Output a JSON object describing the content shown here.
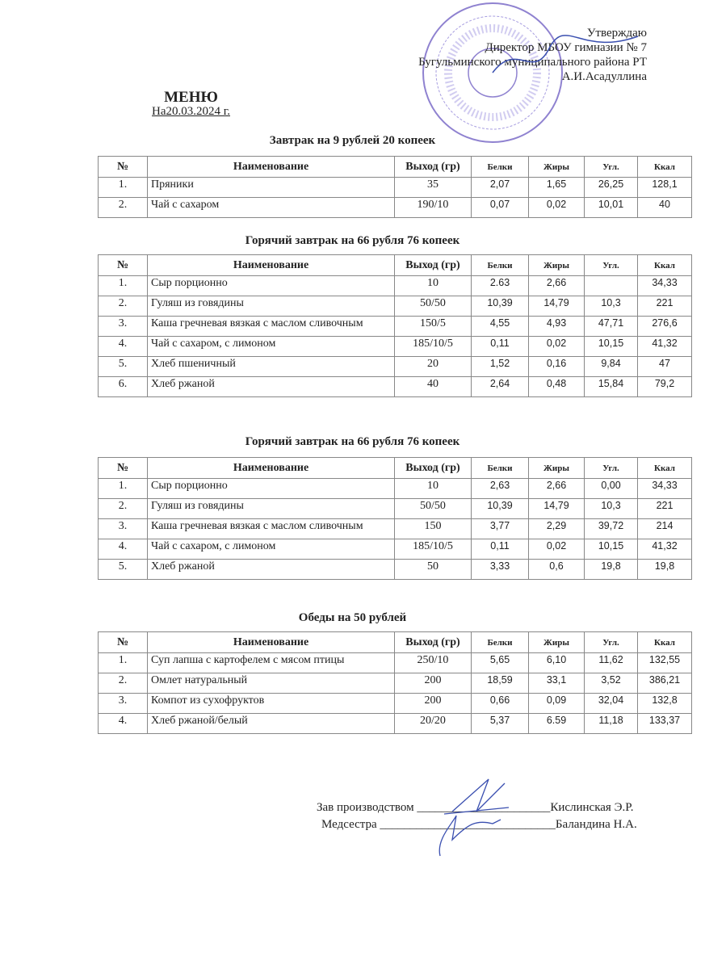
{
  "approval": {
    "line1": "Утверждаю",
    "line2": "Директор МБОУ гимназии № 7",
    "line3": "Бугульминского муниципального района РТ",
    "line4": "А.И.Асадуллина"
  },
  "title": "МЕНЮ",
  "date": "На20.03.2024 г.",
  "headers": {
    "num": "№",
    "name": "Наименование",
    "out": "Выход (гр)",
    "prot": "Белки",
    "fat": "Жиры",
    "carb": "Угл.",
    "kcal": "Ккал"
  },
  "sections": [
    {
      "title": "Завтрак на 9 рублей 20 копеек",
      "rows": [
        [
          "1.",
          "Пряники",
          "35",
          "2,07",
          "1,65",
          "26,25",
          "128,1"
        ],
        [
          "2.",
          "Чай с сахаром",
          "190/10",
          "0,07",
          "0,02",
          "10,01",
          "40"
        ]
      ]
    },
    {
      "title": "Горячий завтрак на 66 рубля 76 копеек",
      "rows": [
        [
          "1.",
          "Сыр порционно",
          "10",
          "2.63",
          "2,66",
          "",
          "34,33"
        ],
        [
          "2.",
          "Гуляш из говядины",
          "50/50",
          "10,39",
          "14,79",
          "10,3",
          "221"
        ],
        [
          "3.",
          "Каша гречневая вязкая с маслом сливочным",
          "150/5",
          "4,55",
          "4,93",
          "47,71",
          "276,6"
        ],
        [
          "4.",
          "Чай с сахаром, с лимоном",
          "185/10/5",
          "0,11",
          "0,02",
          "10,15",
          "41,32"
        ],
        [
          "5.",
          "Хлеб пшеничный",
          "20",
          "1,52",
          "0,16",
          "9,84",
          "47"
        ],
        [
          "6.",
          "Хлеб ржаной",
          "40",
          "2,64",
          "0,48",
          "15,84",
          "79,2"
        ]
      ]
    },
    {
      "title": "Горячий завтрак на 66 рубля 76 копеек",
      "rows": [
        [
          "1.",
          "Сыр порционно",
          "10",
          "2,63",
          "2,66",
          "0,00",
          "34,33"
        ],
        [
          "2.",
          "Гуляш из говядины",
          "50/50",
          "10,39",
          "14,79",
          "10,3",
          "221"
        ],
        [
          "3.",
          "Каша гречневая вязкая с маслом сливочным",
          "150",
          "3,77",
          "2,29",
          "39,72",
          "214"
        ],
        [
          "4.",
          "Чай с сахаром, с лимоном",
          "185/10/5",
          "0,11",
          "0,02",
          "10,15",
          "41,32"
        ],
        [
          "5.",
          "Хлеб ржаной",
          "50",
          "3,33",
          "0,6",
          "19,8",
          "19,8"
        ]
      ]
    },
    {
      "title": "Обеды на 50 рублей",
      "rows": [
        [
          "1.",
          "Суп лапша с картофелем с мясом птицы",
          "250/10",
          "5,65",
          "6,10",
          "11,62",
          "132,55"
        ],
        [
          "2.",
          "Омлет натуральный",
          "200",
          "18,59",
          "33,1",
          "3,52",
          "386,21"
        ],
        [
          "3.",
          "Компот из сухофруктов",
          "200",
          "0,66",
          "0,09",
          "32,04",
          "132,8"
        ],
        [
          "4.",
          "Хлеб ржаной/белый",
          "20/20",
          "5,37",
          "6.59",
          "11,18",
          "133,37"
        ]
      ]
    }
  ],
  "signatures": [
    {
      "role": "Зав производством",
      "name": "Кислинская Э.Р."
    },
    {
      "role": "Медсестра",
      "name": "Баландина Н.А."
    }
  ],
  "colors": {
    "stamp": "#7a6bc4",
    "signature": "#3a4fb0"
  }
}
